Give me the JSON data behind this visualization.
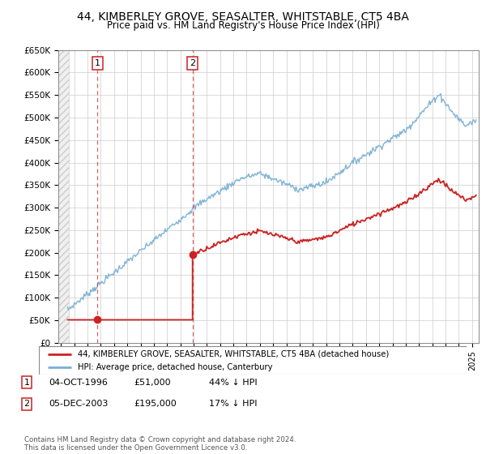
{
  "title": "44, KIMBERLEY GROVE, SEASALTER, WHITSTABLE, CT5 4BA",
  "subtitle": "Price paid vs. HM Land Registry's House Price Index (HPI)",
  "legend_line1": "44, KIMBERLEY GROVE, SEASALTER, WHITSTABLE, CT5 4BA (detached house)",
  "legend_line2": "HPI: Average price, detached house, Canterbury",
  "footnote": "Contains HM Land Registry data © Crown copyright and database right 2024.\nThis data is licensed under the Open Government Licence v3.0.",
  "table": [
    {
      "num": "1",
      "date": "04-OCT-1996",
      "price": "£51,000",
      "pct": "44% ↓ HPI"
    },
    {
      "num": "2",
      "date": "05-DEC-2003",
      "price": "£195,000",
      "pct": "17% ↓ HPI"
    }
  ],
  "sale1_year": 1996.75,
  "sale1_price": 51000,
  "sale2_year": 2003.92,
  "sale2_price": 195000,
  "hpi_color": "#7ab0d4",
  "property_color": "#cc2222",
  "dot_color": "#cc2222",
  "vline_color": "#cc2222",
  "ylim": [
    0,
    650000
  ],
  "ytick_vals": [
    0,
    50000,
    100000,
    150000,
    200000,
    250000,
    300000,
    350000,
    400000,
    450000,
    500000,
    550000,
    600000,
    650000
  ],
  "xlim_start": 1993.8,
  "xlim_end": 2025.5,
  "hatch_end": 1994.6
}
